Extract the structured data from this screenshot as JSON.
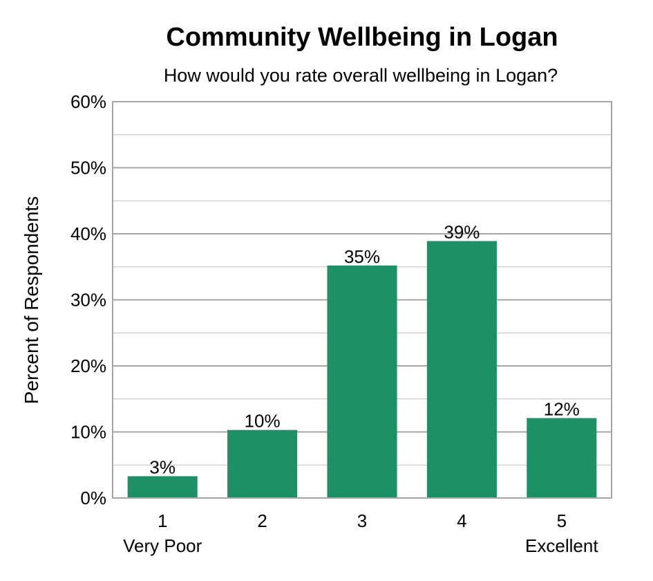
{
  "chart_data": {
    "type": "bar",
    "title": "Community Wellbeing in Logan",
    "subtitle": "How would you rate overall wellbeing in Logan?",
    "ylabel": "Percent of Respondents",
    "xlabel": "",
    "ylim": [
      0,
      60
    ],
    "y_ticks": [
      0,
      10,
      20,
      30,
      40,
      50,
      60
    ],
    "y_tick_labels": [
      "0%",
      "10%",
      "20%",
      "30%",
      "40%",
      "50%",
      "60%"
    ],
    "minor_grid_step": 5,
    "grid": true,
    "categories": [
      "1",
      "2",
      "3",
      "4",
      "5"
    ],
    "category_sublabels": [
      "Very Poor",
      "",
      "",
      "",
      "Excellent"
    ],
    "values": [
      3.3,
      10.3,
      35.2,
      38.9,
      12.1
    ],
    "data_labels": [
      "3%",
      "10%",
      "35%",
      "39%",
      "12%"
    ],
    "bar_color": "#1e9066",
    "grid_color": "#bfbfbf",
    "major_grid_color": "#a6a6a6"
  }
}
